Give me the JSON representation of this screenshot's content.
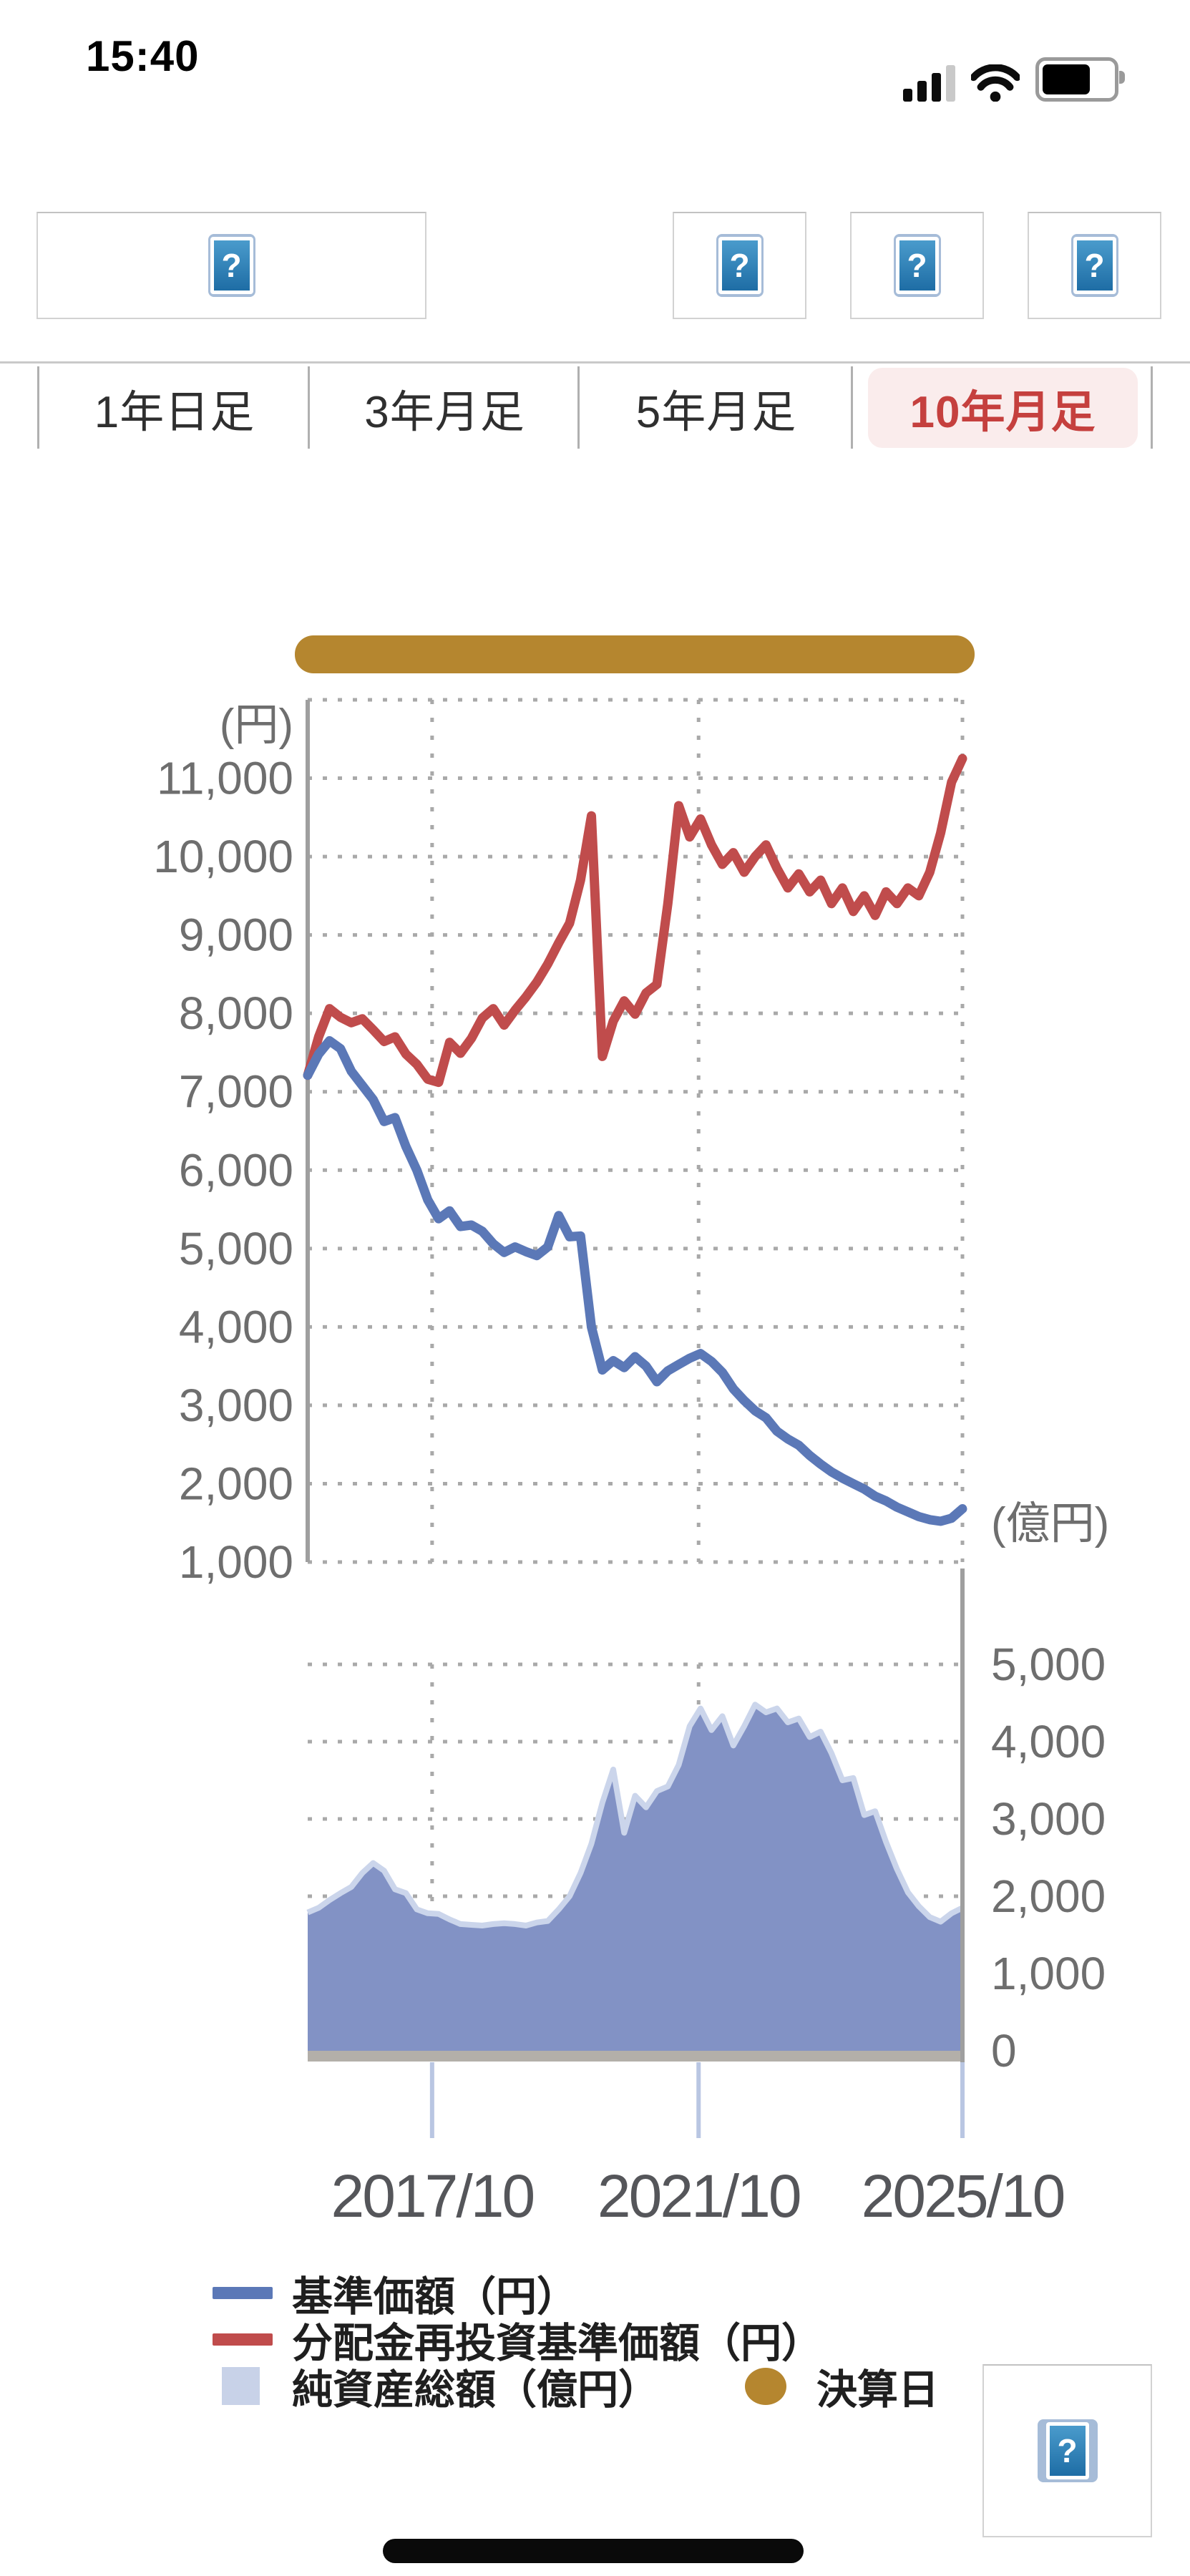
{
  "status_bar": {
    "time": "15:40"
  },
  "icons": {
    "help_glyph": "?"
  },
  "tabs": [
    {
      "label": "1年日足",
      "selected": false
    },
    {
      "label": "3年月足",
      "selected": false
    },
    {
      "label": "5年月足",
      "selected": false
    },
    {
      "label": "10年月足",
      "selected": true
    }
  ],
  "colors": {
    "nav_line": "#5b78b7",
    "reinvest_line": "#c04c4c",
    "net_assets_fill": "#8292c5",
    "net_assets_edge": "#cbd5eb",
    "legend_net_assets_swatch": "#c8d2e8",
    "settlement_gold": "#b5862f",
    "tab_selected_text": "#c5403e",
    "tab_selected_bg": "#faecec",
    "grid": "#a9a9a9",
    "axis": "#9f9f9f",
    "axis_label": "#6e6e6e",
    "x_label": "#55565a",
    "tick_blue": "#b9c6e2",
    "axis_bar": "#b3afa9"
  },
  "chart_data": [
    {
      "type": "line",
      "title": "基準価額・分配金再投資基準価額（10年月足）",
      "x_start": "2015/10",
      "x_end": "2025/10",
      "interval_months": 2,
      "y_axis": {
        "unit": "(円)",
        "range": [
          1000,
          12000
        ],
        "ticks": [
          {
            "label": "11,000",
            "value": 11000
          },
          {
            "label": "10,000",
            "value": 10000
          },
          {
            "label": "9,000",
            "value": 9000
          },
          {
            "label": "8,000",
            "value": 8000
          },
          {
            "label": "7,000",
            "value": 7000
          },
          {
            "label": "6,000",
            "value": 6000
          },
          {
            "label": "5,000",
            "value": 5000
          },
          {
            "label": "4,000",
            "value": 4000
          },
          {
            "label": "3,000",
            "value": 3000
          },
          {
            "label": "2,000",
            "value": 2000
          },
          {
            "label": "1,000",
            "value": 1000
          }
        ]
      },
      "x_axis": {
        "ticks": [
          {
            "label": "2017/10"
          },
          {
            "label": "2021/10"
          },
          {
            "label": "2025/10"
          }
        ]
      },
      "settlement_marker_label": "決算日",
      "series": [
        {
          "name": "基準価額（円）",
          "values": [
            7210,
            7480,
            7650,
            7550,
            7260,
            7080,
            6900,
            6620,
            6670,
            6300,
            6000,
            5620,
            5380,
            5480,
            5280,
            5300,
            5220,
            5060,
            4950,
            5020,
            4960,
            4910,
            5020,
            5420,
            5150,
            5160,
            4000,
            3450,
            3570,
            3480,
            3620,
            3500,
            3300,
            3440,
            3520,
            3600,
            3660,
            3560,
            3420,
            3210,
            3060,
            2930,
            2840,
            2670,
            2570,
            2490,
            2360,
            2250,
            2150,
            2070,
            2000,
            1930,
            1840,
            1780,
            1700,
            1640,
            1580,
            1540,
            1520,
            1560,
            1680
          ]
        },
        {
          "name": "分配金再投資基準価額（円）",
          "values": [
            7210,
            7700,
            8060,
            7950,
            7880,
            7930,
            7790,
            7640,
            7700,
            7480,
            7350,
            7160,
            7120,
            7630,
            7490,
            7680,
            7940,
            8060,
            7850,
            8040,
            8210,
            8400,
            8630,
            8900,
            9150,
            9700,
            10520,
            7450,
            7900,
            8160,
            7990,
            8260,
            8370,
            9400,
            10650,
            10250,
            10480,
            10150,
            9900,
            10050,
            9800,
            10000,
            10150,
            9850,
            9600,
            9780,
            9550,
            9700,
            9400,
            9600,
            9300,
            9500,
            9250,
            9550,
            9400,
            9600,
            9500,
            9800,
            10300,
            10950,
            11250
          ]
        }
      ]
    },
    {
      "type": "area",
      "title": "純資産総額",
      "x_start": "2015/10",
      "x_end": "2025/10",
      "interval_months": 2,
      "y_axis": {
        "unit": "(億円)",
        "range": [
          0,
          5000
        ],
        "ticks": [
          {
            "label": "5,000",
            "value": 5000
          },
          {
            "label": "4,000",
            "value": 4000
          },
          {
            "label": "3,000",
            "value": 3000
          },
          {
            "label": "2,000",
            "value": 2000
          },
          {
            "label": "1,000",
            "value": 1000
          },
          {
            "label": "0",
            "value": 0
          }
        ]
      },
      "series": [
        {
          "name": "純資産総額（億円）",
          "values": [
            1790,
            1850,
            1950,
            2040,
            2120,
            2300,
            2430,
            2330,
            2090,
            2040,
            1830,
            1780,
            1770,
            1700,
            1640,
            1630,
            1620,
            1640,
            1650,
            1640,
            1620,
            1660,
            1680,
            1830,
            2000,
            2300,
            2680,
            3210,
            3640,
            2820,
            3300,
            3150,
            3360,
            3420,
            3700,
            4200,
            4430,
            4150,
            4330,
            3950,
            4200,
            4480,
            4380,
            4430,
            4250,
            4300,
            4060,
            4130,
            3850,
            3500,
            3530,
            3050,
            3100,
            2700,
            2350,
            2050,
            1870,
            1730,
            1670,
            1780,
            1850
          ]
        }
      ]
    }
  ],
  "legend": [
    {
      "label": "基準価額（円）",
      "swatch": "line-blue"
    },
    {
      "label": "分配金再投資基準価額（円）",
      "swatch": "line-red"
    },
    {
      "label": "純資産総額（億円）",
      "swatch": "square-lightblue"
    },
    {
      "label": "決算日",
      "swatch": "ellipse-gold"
    }
  ]
}
